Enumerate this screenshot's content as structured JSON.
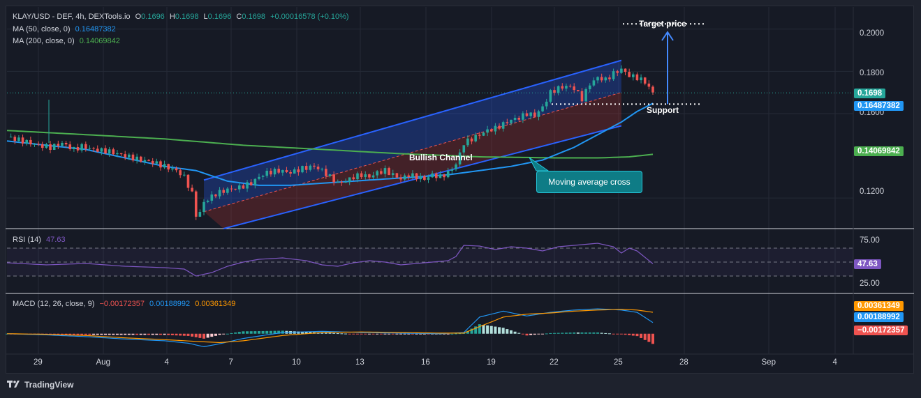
{
  "header": {
    "symbol": "KLAY/USD - DEF, 4h, DEXTools.io",
    "o_label": "O",
    "o_val": "0.1696",
    "h_label": "H",
    "h_val": "0.1698",
    "l_label": "L",
    "l_val": "0.1696",
    "c_label": "C",
    "c_val": "0.1698",
    "change": "+0.00016578 (+0.10%)"
  },
  "ma50": {
    "label": "MA (50, close, 0)",
    "value": "0.16487382",
    "color": "#2196f3"
  },
  "ma200": {
    "label": "MA (200, close, 0)",
    "value": "0.14069842",
    "color": "#4caf50"
  },
  "rsi": {
    "label": "RSI (14)",
    "value": "47.63",
    "ticks": [
      "75.00",
      "25.00"
    ]
  },
  "macd": {
    "label": "MACD (12, 26, close, 9)",
    "hist": "−0.00172357",
    "macd": "0.00188992",
    "signal": "0.00361349"
  },
  "price_axis": [
    "0.2000",
    "0.1800",
    "0.1600",
    "0.1200"
  ],
  "tags": {
    "last": "0.1698",
    "ma50": "0.16487382",
    "ma200": "0.14069842",
    "rsi": "47.63",
    "signal": "0.00361349",
    "macd": "0.00188992",
    "hist": "−0.00172357"
  },
  "annotations": {
    "target": "Target price",
    "support": "Support",
    "channel": "Bullish Channel",
    "cross": "Moving average cross"
  },
  "footer": "TradingView",
  "colors": {
    "up": "#26a69a",
    "down": "#ef5350",
    "ma50": "#2196f3",
    "ma200": "#4caf50",
    "channel": "#2962ff",
    "rsi": "#7e57c2",
    "signal": "#ff9800"
  },
  "chart_data": {
    "type": "candlestick",
    "timeframe": "4h",
    "x_ticks": [
      "29",
      "Aug",
      "4",
      "7",
      "10",
      "13",
      "16",
      "19",
      "22",
      "25",
      "28",
      "Sep",
      "4"
    ],
    "y_ticks": [
      0.12,
      0.16,
      0.18,
      0.2
    ],
    "ylim": [
      0.1055,
      0.2105
    ],
    "last_price": 0.1698,
    "ma_50_last": 0.16487382,
    "ma_200_last": 0.14069842,
    "price_path": [
      [
        0,
        0.149
      ],
      [
        4,
        0.147
      ],
      [
        8,
        0.145
      ],
      [
        11,
        0.144
      ],
      [
        14,
        0.146
      ],
      [
        17,
        0.143
      ],
      [
        19,
        0.1445
      ],
      [
        22,
        0.143
      ],
      [
        26,
        0.142
      ],
      [
        30,
        0.14
      ],
      [
        34,
        0.138
      ],
      [
        37,
        0.137
      ],
      [
        40,
        0.135
      ],
      [
        43,
        0.133
      ],
      [
        45,
        0.13
      ],
      [
        47,
        0.122
      ],
      [
        48,
        0.112
      ],
      [
        49,
        0.113
      ],
      [
        50,
        0.118
      ],
      [
        53,
        0.122
      ],
      [
        56,
        0.124
      ],
      [
        59,
        0.125
      ],
      [
        62,
        0.127
      ],
      [
        64,
        0.13
      ],
      [
        66,
        0.132
      ],
      [
        69,
        0.133
      ],
      [
        72,
        0.132
      ],
      [
        75,
        0.134
      ],
      [
        78,
        0.135
      ],
      [
        80,
        0.133
      ],
      [
        82,
        0.13
      ],
      [
        84,
        0.127
      ],
      [
        86,
        0.128
      ],
      [
        88,
        0.13
      ],
      [
        90,
        0.131
      ],
      [
        92,
        0.13
      ],
      [
        94,
        0.132
      ],
      [
        96,
        0.133
      ],
      [
        98,
        0.131
      ],
      [
        100,
        0.129
      ],
      [
        102,
        0.131
      ],
      [
        104,
        0.13
      ],
      [
        106,
        0.129
      ],
      [
        108,
        0.131
      ],
      [
        110,
        0.13
      ],
      [
        112,
        0.132
      ],
      [
        114,
        0.136
      ],
      [
        116,
        0.146
      ],
      [
        118,
        0.148
      ],
      [
        120,
        0.15
      ],
      [
        122,
        0.152
      ],
      [
        124,
        0.153
      ],
      [
        126,
        0.155
      ],
      [
        128,
        0.157
      ],
      [
        130,
        0.158
      ],
      [
        132,
        0.16
      ],
      [
        134,
        0.159
      ],
      [
        136,
        0.163
      ],
      [
        138,
        0.17
      ],
      [
        140,
        0.172
      ],
      [
        142,
        0.173
      ],
      [
        144,
        0.172
      ],
      [
        146,
        0.167
      ],
      [
        148,
        0.174
      ],
      [
        150,
        0.177
      ],
      [
        152,
        0.176
      ],
      [
        154,
        0.179
      ],
      [
        156,
        0.181
      ],
      [
        158,
        0.178
      ],
      [
        160,
        0.177
      ],
      [
        162,
        0.175
      ],
      [
        164,
        0.1698
      ]
    ],
    "ma50_path": [
      [
        0,
        0.147
      ],
      [
        10,
        0.145
      ],
      [
        20,
        0.143
      ],
      [
        30,
        0.139
      ],
      [
        40,
        0.135
      ],
      [
        48,
        0.133
      ],
      [
        56,
        0.128
      ],
      [
        64,
        0.126
      ],
      [
        72,
        0.126
      ],
      [
        80,
        0.127
      ],
      [
        88,
        0.128
      ],
      [
        96,
        0.129
      ],
      [
        104,
        0.13
      ],
      [
        112,
        0.131
      ],
      [
        120,
        0.133
      ],
      [
        128,
        0.135
      ],
      [
        136,
        0.138
      ],
      [
        144,
        0.144
      ],
      [
        150,
        0.15
      ],
      [
        156,
        0.156
      ],
      [
        160,
        0.161
      ],
      [
        164,
        0.16487
      ]
    ],
    "ma200_path": [
      [
        0,
        0.152
      ],
      [
        20,
        0.15
      ],
      [
        40,
        0.148
      ],
      [
        60,
        0.145
      ],
      [
        80,
        0.143
      ],
      [
        100,
        0.141
      ],
      [
        120,
        0.1395
      ],
      [
        140,
        0.139
      ],
      [
        150,
        0.139
      ],
      [
        158,
        0.1395
      ],
      [
        164,
        0.1407
      ]
    ],
    "channel": {
      "top": [
        [
          50,
          0.1285
        ],
        [
          156,
          0.1852
        ]
      ],
      "bottom": [
        [
          55,
          0.1055
        ],
        [
          156,
          0.1542
        ]
      ],
      "mid": [
        [
          50,
          0.1135
        ],
        [
          156,
          0.17
        ]
      ]
    },
    "support_level": 0.1645,
    "target_level": 0.2025,
    "rsi_path": [
      [
        0,
        49
      ],
      [
        10,
        46
      ],
      [
        20,
        48
      ],
      [
        30,
        44
      ],
      [
        40,
        42
      ],
      [
        45,
        40
      ],
      [
        48,
        30
      ],
      [
        52,
        35
      ],
      [
        56,
        44
      ],
      [
        60,
        50
      ],
      [
        64,
        54
      ],
      [
        70,
        56
      ],
      [
        76,
        52
      ],
      [
        80,
        46
      ],
      [
        84,
        44
      ],
      [
        88,
        49
      ],
      [
        92,
        52
      ],
      [
        96,
        50
      ],
      [
        100,
        46
      ],
      [
        104,
        48
      ],
      [
        108,
        50
      ],
      [
        112,
        52
      ],
      [
        114,
        58
      ],
      [
        116,
        74
      ],
      [
        120,
        73
      ],
      [
        124,
        68
      ],
      [
        128,
        72
      ],
      [
        132,
        70
      ],
      [
        136,
        66
      ],
      [
        140,
        72
      ],
      [
        144,
        74
      ],
      [
        148,
        76
      ],
      [
        150,
        77
      ],
      [
        154,
        72
      ],
      [
        156,
        63
      ],
      [
        158,
        70
      ],
      [
        160,
        66
      ],
      [
        164,
        47.63
      ]
    ],
    "macd_path": [
      [
        0,
        0.0
      ],
      [
        10,
        -0.0002
      ],
      [
        20,
        -0.0005
      ],
      [
        30,
        -0.0009
      ],
      [
        40,
        -0.0012
      ],
      [
        46,
        -0.0016
      ],
      [
        50,
        -0.0022
      ],
      [
        54,
        -0.0017
      ],
      [
        60,
        -0.0008
      ],
      [
        70,
        0.0002
      ],
      [
        80,
        0.0004
      ],
      [
        90,
        0.0002
      ],
      [
        100,
        0.0001
      ],
      [
        110,
        0.0
      ],
      [
        116,
        0.0002
      ],
      [
        120,
        0.0028
      ],
      [
        126,
        0.0038
      ],
      [
        132,
        0.003
      ],
      [
        138,
        0.0036
      ],
      [
        144,
        0.004
      ],
      [
        150,
        0.0042
      ],
      [
        156,
        0.004
      ],
      [
        160,
        0.0036
      ],
      [
        164,
        0.00188992
      ]
    ],
    "signal_path": [
      [
        0,
        0.0
      ],
      [
        10,
        -0.0001
      ],
      [
        20,
        -0.0003
      ],
      [
        30,
        -0.0007
      ],
      [
        40,
        -0.001
      ],
      [
        48,
        -0.0013
      ],
      [
        54,
        -0.0015
      ],
      [
        60,
        -0.0012
      ],
      [
        70,
        -0.0003
      ],
      [
        80,
        0.0002
      ],
      [
        90,
        0.0003
      ],
      [
        100,
        0.0002
      ],
      [
        110,
        0.0001
      ],
      [
        116,
        0.0001
      ],
      [
        120,
        0.0012
      ],
      [
        126,
        0.0028
      ],
      [
        132,
        0.0033
      ],
      [
        138,
        0.0035
      ],
      [
        144,
        0.0038
      ],
      [
        150,
        0.004
      ],
      [
        156,
        0.0041
      ],
      [
        160,
        0.004
      ],
      [
        164,
        0.00361349
      ]
    ],
    "macd_range": [
      -0.0025,
      0.0055
    ]
  }
}
